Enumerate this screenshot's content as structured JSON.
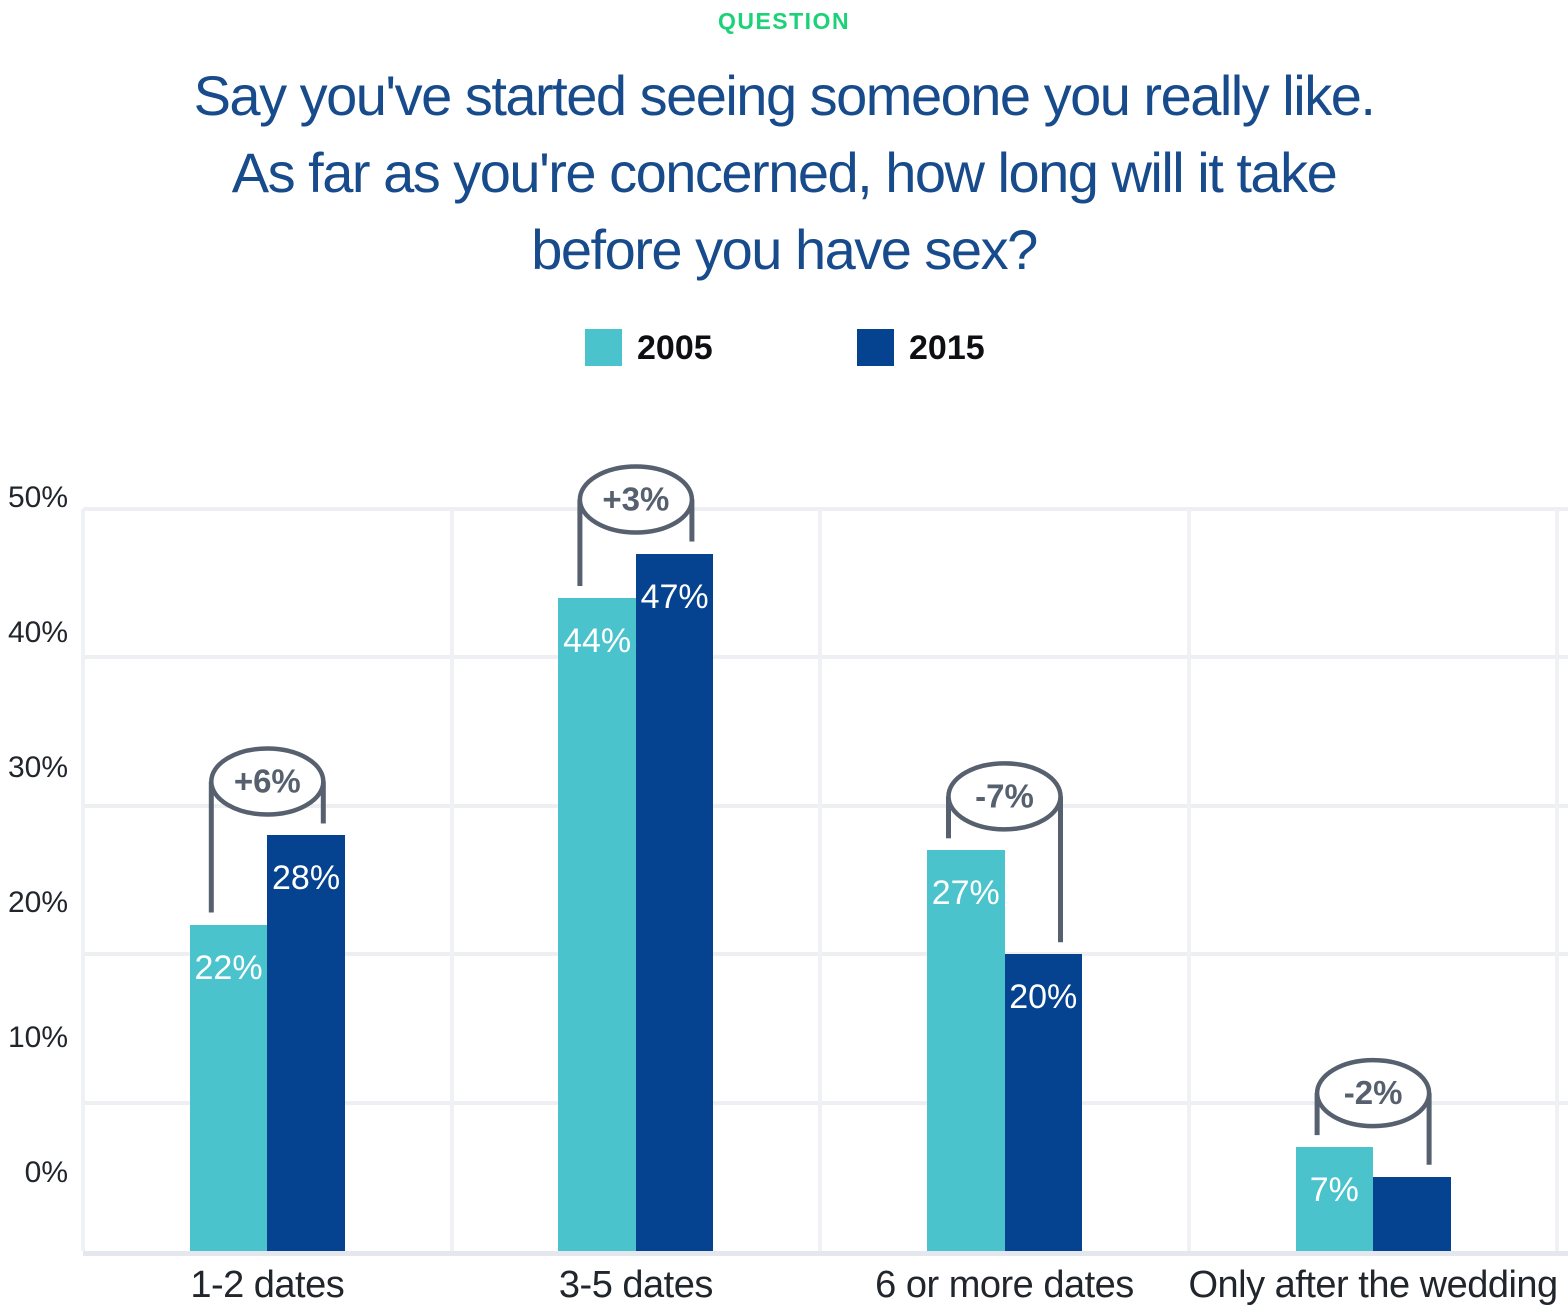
{
  "header": {
    "eyebrow": "QUESTION",
    "title_lines": [
      "Say you've started seeing someone you really like.",
      "As far as you're concerned, how long will it take",
      "before you have sex?"
    ]
  },
  "chart_data": {
    "type": "bar",
    "title": "Say you've started seeing someone you really like. As far as you're concerned, how long will it take before you have sex?",
    "categories": [
      "1-2 dates",
      "3-5 dates",
      "6 or more dates",
      "Only after the wedding"
    ],
    "series": [
      {
        "name": "2005",
        "color": "#4AC3CD",
        "values": [
          22,
          44,
          27,
          7
        ],
        "bar_labels": [
          "22%",
          "44%",
          "27%",
          "7%"
        ]
      },
      {
        "name": "2015",
        "color": "#05428F",
        "values": [
          28,
          47,
          20,
          5
        ],
        "bar_labels": [
          "28%",
          "47%",
          "20%",
          ""
        ]
      }
    ],
    "annotations": [
      {
        "category": "1-2 dates",
        "label": "+6%"
      },
      {
        "category": "3-5 dates",
        "label": "+3%"
      },
      {
        "category": "6 or more dates",
        "label": "-7%"
      },
      {
        "category": "Only after the wedding",
        "label": "-2%"
      }
    ],
    "y_ticks": [
      {
        "value": 50,
        "label": "50%"
      },
      {
        "value": 40,
        "label": "40%"
      },
      {
        "value": 30,
        "label": "30%"
      },
      {
        "value": 20,
        "label": "20%"
      },
      {
        "value": 10,
        "label": "10%"
      },
      {
        "value": 0,
        "label": "0%"
      }
    ],
    "ylim": [
      0,
      50
    ],
    "grid": true,
    "legend_position": "top",
    "value_unit": "%"
  },
  "colors": {
    "eyebrow_green": "#1BD278",
    "title_blue": "#174B8C",
    "series_2005_teal": "#4AC3CD",
    "series_2015_navy": "#05428F",
    "annotation_gray": "#57606F",
    "gridline_gray": "#EDEFF3",
    "axis_text": "#21252C",
    "bar_label_white": "#FFFFFF"
  }
}
